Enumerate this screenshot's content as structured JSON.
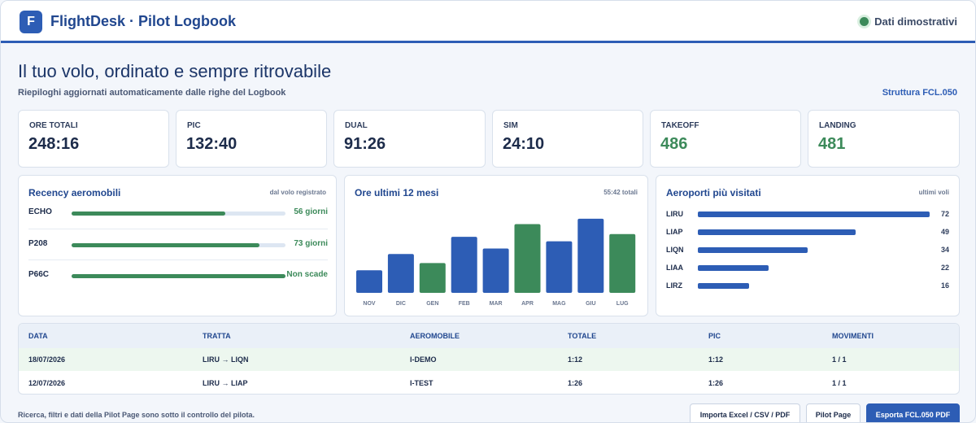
{
  "app": {
    "logo_letter": "F",
    "title": "FlightDesk · Pilot Logbook",
    "status": "Dati dimostrativi"
  },
  "header": {
    "headline": "Il tuo volo, ordinato e sempre ritrovabile",
    "subline": "Riepiloghi aggiornati automaticamente dalle righe del Logbook",
    "structure_link": "Struttura FCL.050"
  },
  "stats": [
    {
      "label": "ORE TOTALI",
      "value": "248:16"
    },
    {
      "label": "PIC",
      "value": "132:40"
    },
    {
      "label": "DUAL",
      "value": "91:26"
    },
    {
      "label": "SIM",
      "value": "24:10"
    },
    {
      "label": "TAKEOFF",
      "value": "486"
    },
    {
      "label": "LANDING",
      "value": "481"
    }
  ],
  "recency": {
    "title": "Recency aeromobili",
    "note": "dal volo registrato",
    "items": [
      {
        "code": "ECHO",
        "value": "56 giorni",
        "fill": 0.72
      },
      {
        "code": "P208",
        "value": "73 giorni",
        "fill": 0.88
      },
      {
        "code": "P66C",
        "value": "Non scade",
        "fill": 1.0
      }
    ]
  },
  "monthly": {
    "title": "Ore ultimi 12 mesi",
    "note": "55:42 totali"
  },
  "chart_data": {
    "type": "bar",
    "categories": [
      "NOV",
      "DIC",
      "GEN",
      "FEB",
      "MAR",
      "APR",
      "MAG",
      "GIU",
      "LUG"
    ],
    "values": [
      2.5,
      4.3,
      3.3,
      6.2,
      4.9,
      7.6,
      5.7,
      8.2,
      6.5
    ],
    "colors": [
      "#2d5db5",
      "#2d5db5",
      "#3c8a5a",
      "#2d5db5",
      "#2d5db5",
      "#3c8a5a",
      "#2d5db5",
      "#2d5db5",
      "#3c8a5a"
    ],
    "ylim": [
      0,
      9
    ],
    "grid": false
  },
  "airports": {
    "title": "Aeroporti più visitati",
    "note": "ultimi voli",
    "items": [
      {
        "code": "LIRU",
        "value": 72
      },
      {
        "code": "LIAP",
        "value": 49
      },
      {
        "code": "LIQN",
        "value": 34
      },
      {
        "code": "LIAA",
        "value": 22
      },
      {
        "code": "LIRZ",
        "value": 16
      }
    ]
  },
  "table": {
    "headers": [
      "DATA",
      "TRATTA",
      "AEROMOBILE",
      "TOTALE",
      "PIC",
      "MOVIMENTI"
    ],
    "rows": [
      [
        "18/07/2026",
        "LIRU → LIQN",
        "I-DEMO",
        "1:12",
        "1:12",
        "1 / 1"
      ],
      [
        "12/07/2026",
        "LIRU → LIAP",
        "I-TEST",
        "1:26",
        "1:26",
        "1 / 1"
      ]
    ]
  },
  "footer": {
    "note": "Ricerca, filtri e dati della Pilot Page sono sotto il controllo del pilota.",
    "buttons": [
      "Importa Excel / CSV / PDF",
      "Pilot Page",
      "Esporta FCL.050 PDF"
    ]
  },
  "colors": {
    "primary": "#2d5db5",
    "green": "#3c8a5a"
  }
}
